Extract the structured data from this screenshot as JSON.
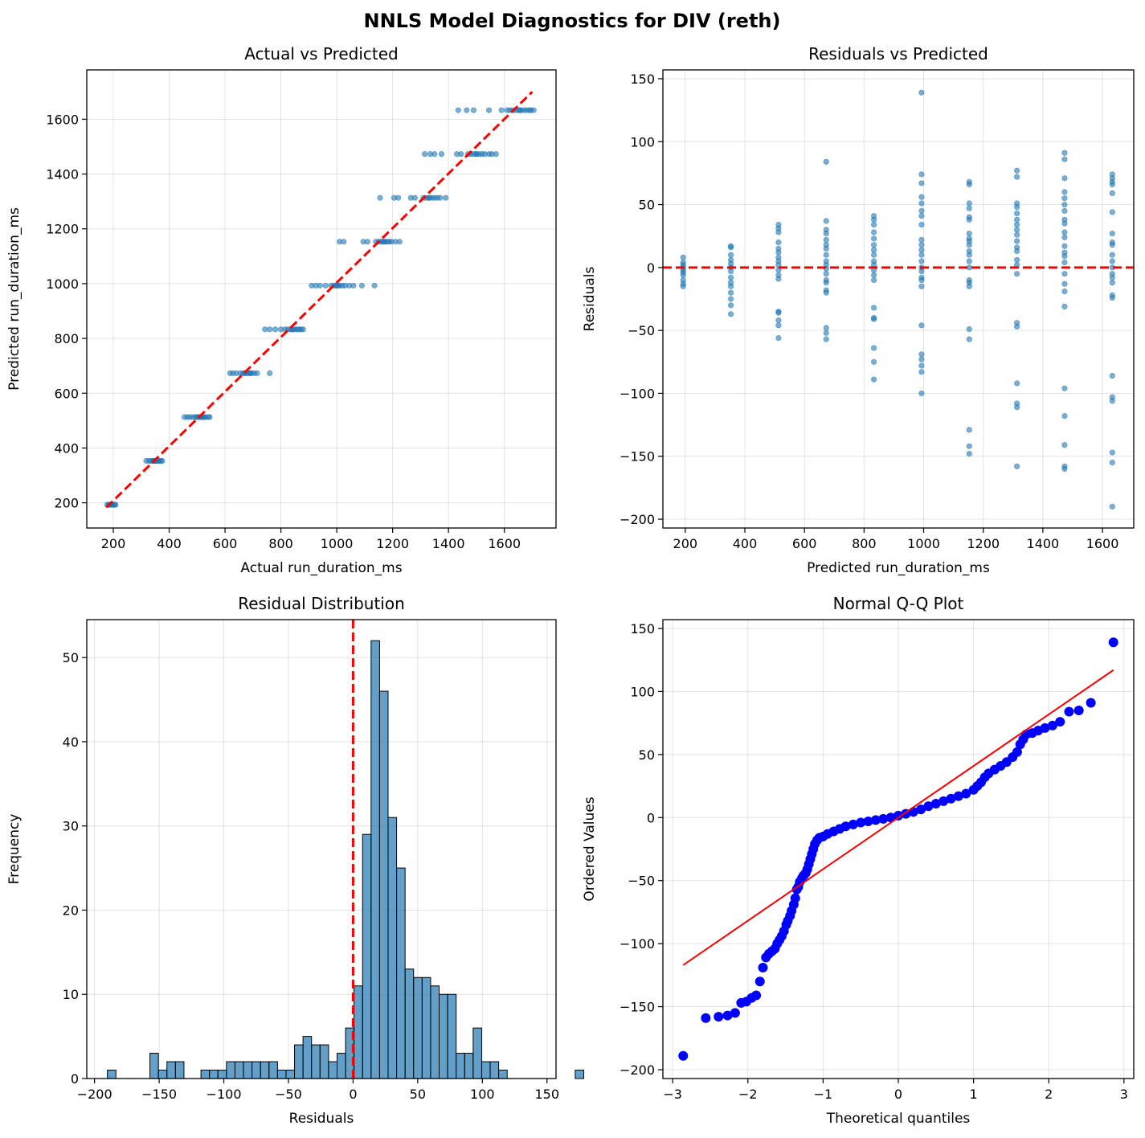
{
  "figure": {
    "title": "NNLS Model Diagnostics for DIV (reth)"
  },
  "colors": {
    "scatter": "#1f77b4",
    "hist": "#1f77b4",
    "reference": "#ff0000",
    "qq_points": "#0000ff",
    "qq_line": "#ff0000",
    "grid": "#b0b0b0"
  },
  "chart_data": [
    {
      "type": "scatter",
      "title": "Actual vs Predicted",
      "xlabel": "Actual run_duration_ms",
      "ylabel": "Predicted run_duration_ms",
      "xlim": [
        105,
        1785
      ],
      "ylim": [
        108,
        1780
      ],
      "xticks": [
        200,
        400,
        600,
        800,
        1000,
        1200,
        1400,
        1600
      ],
      "yticks": [
        200,
        400,
        600,
        800,
        1000,
        1200,
        1400,
        1600
      ],
      "grid": true,
      "reference_line": {
        "style": "dashed",
        "points": [
          [
            175,
            183
          ],
          [
            1700,
            1700
          ]
        ]
      },
      "groups": [
        {
          "predicted": 193,
          "actual": [
            178,
            183,
            187,
            190,
            193,
            196,
            200,
            205,
            208,
            190
          ]
        },
        {
          "predicted": 353,
          "actual": [
            318,
            328,
            335,
            342,
            348,
            352,
            356,
            360,
            365,
            370,
            375,
            345
          ]
        },
        {
          "predicted": 513,
          "actual": [
            455,
            465,
            475,
            485,
            495,
            505,
            510,
            515,
            520,
            525,
            530,
            540,
            545,
            500,
            520
          ]
        },
        {
          "predicted": 673,
          "actual": [
            618,
            628,
            640,
            655,
            665,
            672,
            680,
            688,
            695,
            705,
            715,
            760,
            670,
            690
          ]
        },
        {
          "predicted": 833,
          "actual": [
            743,
            760,
            780,
            800,
            815,
            825,
            835,
            842,
            850,
            858,
            865,
            872,
            880,
            840
          ]
        },
        {
          "predicted": 993,
          "actual": [
            910,
            925,
            940,
            960,
            980,
            990,
            995,
            1000,
            1005,
            1010,
            1020,
            1030,
            1045,
            1060,
            1090,
            1135
          ]
        },
        {
          "predicted": 1153,
          "actual": [
            1010,
            1025,
            1095,
            1110,
            1140,
            1150,
            1158,
            1165,
            1172,
            1180,
            1188,
            1195,
            1210,
            1225,
            1170
          ]
        },
        {
          "predicted": 1313,
          "actual": [
            1155,
            1205,
            1220,
            1265,
            1280,
            1310,
            1320,
            1330,
            1340,
            1350,
            1360,
            1370,
            1390,
            1330
          ]
        },
        {
          "predicted": 1473,
          "actual": [
            1315,
            1335,
            1350,
            1375,
            1430,
            1445,
            1470,
            1480,
            1490,
            1500,
            1510,
            1520,
            1530,
            1545,
            1555,
            1570,
            1500
          ]
        },
        {
          "predicted": 1633,
          "actual": [
            1435,
            1465,
            1490,
            1545,
            1590,
            1610,
            1620,
            1630,
            1640,
            1650,
            1660,
            1670,
            1680,
            1690,
            1695,
            1705,
            1655
          ]
        }
      ]
    },
    {
      "type": "scatter",
      "title": "Residuals vs Predicted",
      "xlabel": "Predicted run_duration_ms",
      "ylabel": "Residuals",
      "xlim": [
        125,
        1705
      ],
      "ylim": [
        -207,
        157
      ],
      "xticks": [
        200,
        400,
        600,
        800,
        1000,
        1200,
        1400,
        1600
      ],
      "yticks": [
        -200,
        -150,
        -100,
        -50,
        0,
        50,
        100,
        150
      ],
      "grid": true,
      "reference_line": {
        "style": "dashed",
        "y": 0
      },
      "groups": [
        {
          "predicted": 193,
          "residuals": [
            8,
            4,
            2,
            0,
            -2,
            -4,
            -6,
            -10,
            -13,
            -15
          ]
        },
        {
          "predicted": 353,
          "residuals": [
            17,
            16,
            10,
            6,
            3,
            0,
            -3,
            -8,
            -12,
            -15,
            -20,
            -25,
            -30,
            -37
          ]
        },
        {
          "predicted": 513,
          "residuals": [
            34,
            31,
            28,
            20,
            15,
            12,
            8,
            5,
            2,
            -2,
            -6,
            -9,
            -35,
            -36,
            -42,
            -46,
            -56
          ]
        },
        {
          "predicted": 673,
          "residuals": [
            84,
            37,
            30,
            27,
            22,
            18,
            15,
            10,
            5,
            2,
            -1,
            -5,
            -10,
            -12,
            -18,
            -20,
            -48,
            -52,
            -57
          ]
        },
        {
          "predicted": 833,
          "residuals": [
            41,
            38,
            34,
            28,
            23,
            18,
            14,
            10,
            5,
            2,
            -2,
            -6,
            -10,
            -32,
            -40,
            -41,
            -64,
            -75,
            -89
          ]
        },
        {
          "predicted": 993,
          "residuals": [
            139,
            74,
            67,
            56,
            51,
            45,
            41,
            34,
            22,
            18,
            14,
            10,
            5,
            0,
            -3,
            -8,
            -10,
            -15,
            -46,
            -69,
            -73,
            -78,
            -83,
            -100
          ]
        },
        {
          "predicted": 1153,
          "residuals": [
            68,
            66,
            51,
            47,
            40,
            38,
            27,
            23,
            21,
            18,
            13,
            10,
            5,
            0,
            -10,
            -12,
            -15,
            -49,
            -57,
            -129,
            -142,
            -148
          ]
        },
        {
          "predicted": 1313,
          "residuals": [
            77,
            72,
            51,
            48,
            43,
            38,
            34,
            30,
            26,
            21,
            16,
            13,
            6,
            2,
            -5,
            -44,
            -47,
            -92,
            -108,
            -111,
            -158
          ]
        },
        {
          "predicted": 1473,
          "residuals": [
            91,
            86,
            71,
            60,
            55,
            50,
            45,
            38,
            35,
            28,
            24,
            17,
            12,
            9,
            4,
            -5,
            -13,
            -19,
            -31,
            -96,
            -118,
            -141,
            -158,
            -160
          ]
        },
        {
          "predicted": 1633,
          "residuals": [
            74,
            71,
            68,
            66,
            59,
            44,
            27,
            20,
            18,
            10,
            5,
            0,
            -5,
            -8,
            -12,
            -22,
            -24,
            -86,
            -103,
            -106,
            -147,
            -155,
            -190
          ]
        }
      ]
    },
    {
      "type": "bar",
      "title": "Residual Distribution",
      "xlabel": "Residuals",
      "ylabel": "Frequency",
      "xlim": [
        -206,
        157
      ],
      "ylim": [
        0,
        54.5
      ],
      "xticks": [
        -200,
        -150,
        -100,
        -50,
        0,
        50,
        100,
        150
      ],
      "yticks": [
        0,
        10,
        20,
        30,
        40,
        50
      ],
      "grid": true,
      "reference_line": {
        "style": "dashed",
        "x": 0
      },
      "bin_start": -190.05,
      "bin_width": 6.58,
      "values": [
        1,
        0,
        0,
        0,
        0,
        3,
        1,
        2,
        2,
        0,
        0,
        1,
        1,
        1,
        2,
        2,
        2,
        2,
        2,
        2,
        1,
        1,
        4,
        5,
        4,
        4,
        2,
        3,
        6,
        11,
        29,
        52,
        46,
        31,
        25,
        13,
        12,
        12,
        11,
        10,
        10,
        3,
        3,
        6,
        2,
        2,
        1,
        0,
        0,
        0,
        0,
        0,
        0,
        0,
        0,
        1
      ]
    },
    {
      "type": "scatter",
      "title": "Normal Q-Q Plot",
      "xlabel": "Theoretical quantiles",
      "ylabel": "Ordered Values",
      "xlim": [
        -3.13,
        3.13
      ],
      "ylim": [
        -207,
        157
      ],
      "xticks": [
        -3,
        -2,
        -1,
        0,
        1,
        2,
        3
      ],
      "yticks": [
        -200,
        -150,
        -100,
        -50,
        0,
        50,
        100,
        150
      ],
      "grid": true,
      "fit_line": {
        "x": [
          -2.86,
          2.86
        ],
        "y": [
          -117,
          117
        ]
      },
      "points": [
        [
          -2.86,
          -189
        ],
        [
          -2.56,
          -159
        ],
        [
          -2.39,
          -158
        ],
        [
          -2.27,
          -157
        ],
        [
          -2.17,
          -155
        ],
        [
          -2.09,
          -147
        ],
        [
          -2.02,
          -146
        ],
        [
          -1.95,
          -143
        ],
        [
          -1.89,
          -141
        ],
        [
          -1.84,
          -130
        ],
        [
          -1.8,
          -119
        ],
        [
          -1.76,
          -111
        ],
        [
          -1.72,
          -108
        ],
        [
          -1.68,
          -106
        ],
        [
          -1.64,
          -104
        ],
        [
          -1.61,
          -100
        ],
        [
          -1.58,
          -97
        ],
        [
          -1.55,
          -94
        ],
        [
          -1.52,
          -90
        ],
        [
          -1.49,
          -85
        ],
        [
          -1.47,
          -82
        ],
        [
          -1.44,
          -78
        ],
        [
          -1.42,
          -74
        ],
        [
          -1.39,
          -69
        ],
        [
          -1.37,
          -64
        ],
        [
          -1.35,
          -57
        ],
        [
          -1.33,
          -55
        ],
        [
          -1.31,
          -51
        ],
        [
          -1.28,
          -48
        ],
        [
          -1.26,
          -46
        ],
        [
          -1.23,
          -44
        ],
        [
          -1.21,
          -41
        ],
        [
          -1.19,
          -37
        ],
        [
          -1.17,
          -33
        ],
        [
          -1.15,
          -29
        ],
        [
          -1.13,
          -25
        ],
        [
          -1.11,
          -21
        ],
        [
          -1.08,
          -18
        ],
        [
          -1.05,
          -16
        ],
        [
          -1.0,
          -15
        ],
        [
          -0.94,
          -13
        ],
        [
          -0.86,
          -11
        ],
        [
          -0.78,
          -9
        ],
        [
          -0.7,
          -7
        ],
        [
          -0.6,
          -5.5
        ],
        [
          -0.5,
          -4
        ],
        [
          -0.4,
          -3
        ],
        [
          -0.3,
          -2
        ],
        [
          -0.2,
          -1
        ],
        [
          -0.1,
          0
        ],
        [
          0.0,
          1.5
        ],
        [
          0.1,
          3
        ],
        [
          0.2,
          4.5
        ],
        [
          0.3,
          6.5
        ],
        [
          0.4,
          9
        ],
        [
          0.5,
          11
        ],
        [
          0.6,
          13
        ],
        [
          0.7,
          15
        ],
        [
          0.8,
          17
        ],
        [
          0.9,
          19
        ],
        [
          1.0,
          22
        ],
        [
          1.05,
          25
        ],
        [
          1.1,
          28
        ],
        [
          1.15,
          32
        ],
        [
          1.2,
          35
        ],
        [
          1.28,
          38
        ],
        [
          1.36,
          41
        ],
        [
          1.44,
          44
        ],
        [
          1.52,
          48
        ],
        [
          1.58,
          52
        ],
        [
          1.62,
          58
        ],
        [
          1.66,
          62
        ],
        [
          1.7,
          66
        ],
        [
          1.78,
          67
        ],
        [
          1.86,
          69
        ],
        [
          1.95,
          71
        ],
        [
          2.05,
          73
        ],
        [
          2.15,
          76
        ],
        [
          2.27,
          84
        ],
        [
          2.4,
          85
        ],
        [
          2.56,
          91
        ],
        [
          2.86,
          139
        ]
      ]
    }
  ]
}
